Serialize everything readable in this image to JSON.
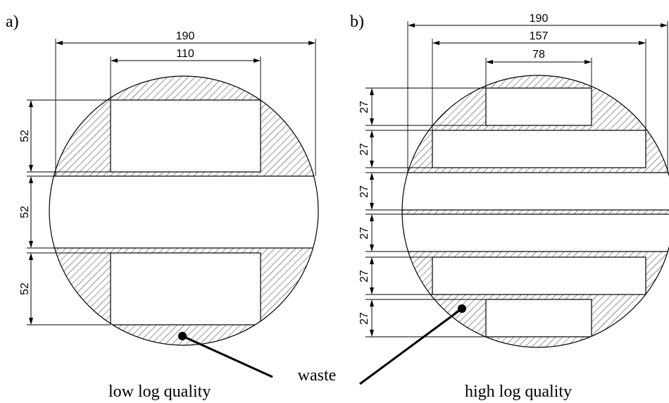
{
  "panel_a": {
    "label": "a)",
    "width_outer": "190",
    "width_inner": "110",
    "heights": [
      "52",
      "52",
      "52"
    ],
    "caption": "low log quality"
  },
  "panel_b": {
    "label": "b)",
    "width_outer": "190",
    "width_mid": "157",
    "width_inner": "78",
    "heights": [
      "27",
      "27",
      "27",
      "27",
      "27",
      "27"
    ],
    "caption": "high log quality"
  },
  "waste_label": "waste",
  "colors": {
    "ink": "#000000",
    "paper": "#ffffff"
  }
}
